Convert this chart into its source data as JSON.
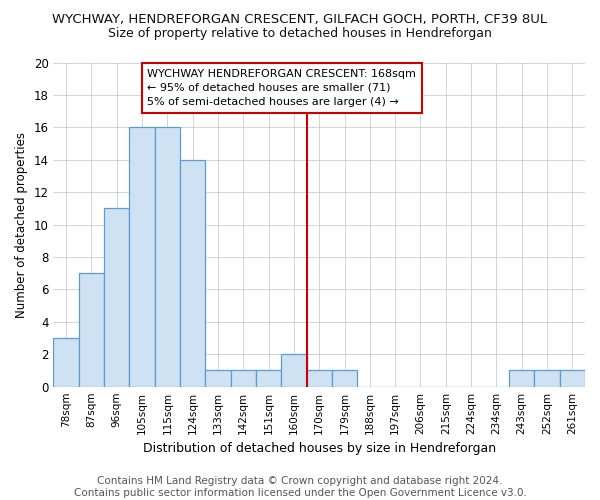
{
  "title_line1": "WYCHWAY, HENDREFORGAN CRESCENT, GILFACH GOCH, PORTH, CF39 8UL",
  "title_line2": "Size of property relative to detached houses in Hendreforgan",
  "xlabel": "Distribution of detached houses by size in Hendreforgan",
  "ylabel": "Number of detached properties",
  "bin_labels": [
    "78sqm",
    "87sqm",
    "96sqm",
    "105sqm",
    "115sqm",
    "124sqm",
    "133sqm",
    "142sqm",
    "151sqm",
    "160sqm",
    "170sqm",
    "179sqm",
    "188sqm",
    "197sqm",
    "206sqm",
    "215sqm",
    "224sqm",
    "234sqm",
    "243sqm",
    "252sqm",
    "261sqm"
  ],
  "bar_heights": [
    3,
    7,
    11,
    16,
    16,
    14,
    1,
    1,
    1,
    2,
    1,
    1,
    0,
    0,
    0,
    0,
    0,
    0,
    1,
    1,
    1
  ],
  "bar_color": "#cfe2f3",
  "bar_edge_color": "#5b9bd5",
  "background_color": "#ffffff",
  "grid_color": "#cccccc",
  "vline_x_index": 10,
  "vline_color": "#cc0000",
  "annotation_text": "WYCHWAY HENDREFORGAN CRESCENT: 168sqm\n← 95% of detached houses are smaller (71)\n5% of semi-detached houses are larger (4) →",
  "annotation_box_color": "#ffffff",
  "annotation_box_edge_color": "#cc0000",
  "ylim": [
    0,
    20
  ],
  "yticks": [
    0,
    2,
    4,
    6,
    8,
    10,
    12,
    14,
    16,
    18,
    20
  ],
  "footer_text": "Contains HM Land Registry data © Crown copyright and database right 2024.\nContains public sector information licensed under the Open Government Licence v3.0.",
  "title_fontsize": 9.5,
  "subtitle_fontsize": 9,
  "ylabel_fontsize": 8.5,
  "xlabel_fontsize": 9,
  "footer_fontsize": 7.5
}
